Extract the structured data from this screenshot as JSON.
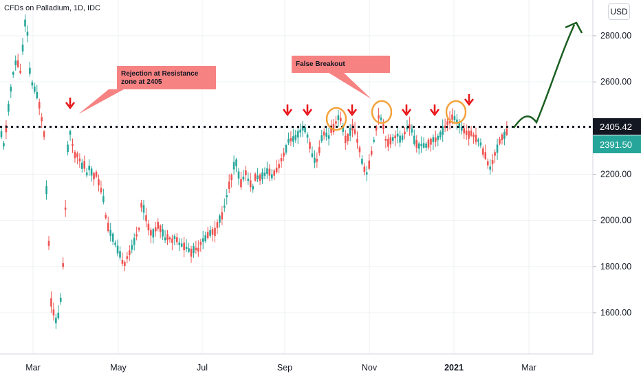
{
  "header": {
    "symbol_title": "CFDs on Palladium, 1D, IDC",
    "currency": "USD"
  },
  "chart_data": {
    "type": "candlestick",
    "title": "CFDs on Palladium, 1D, IDC",
    "y_axis": {
      "ticks": [
        1600,
        1800,
        2000,
        2200,
        2400,
        2600,
        2800
      ],
      "tick_labels": [
        "1600.00",
        "1800.00",
        "2000.00",
        "2200.00",
        "2400.00",
        "2600.00",
        "2800.00"
      ],
      "ylim": [
        1450,
        2920
      ]
    },
    "x_axis": {
      "labels": [
        "Mar",
        "May",
        "Jul",
        "Sep",
        "Nov",
        "2021",
        "Mar"
      ],
      "bold_label": "2021"
    },
    "resistance_level": {
      "value": 2405.42,
      "label": "2405.42"
    },
    "last_price": {
      "value": 2391.5,
      "label": "2391.50",
      "color": "#26a69a"
    },
    "colors": {
      "up": "#26a69a",
      "down": "#ef5350",
      "resistance_tag": "#131722",
      "arrow_down": "#e8161a",
      "circle": "#f4a13a",
      "projection": "#1a5e20",
      "callout_bg": "#f77b7b"
    },
    "annotations": [
      {
        "text_line1": "Rejection at Resistance",
        "text_line2": "zone at 2405"
      },
      {
        "text_line1": "False Breakout",
        "text_line2": ""
      }
    ],
    "keypoints": [
      [
        0,
        2400
      ],
      [
        6,
        2320
      ],
      [
        12,
        2480
      ],
      [
        18,
        2620
      ],
      [
        24,
        2700
      ],
      [
        30,
        2640
      ],
      [
        34,
        2780
      ],
      [
        38,
        2900
      ],
      [
        41,
        2760
      ],
      [
        44,
        2620
      ],
      [
        48,
        2580
      ],
      [
        52,
        2560
      ],
      [
        56,
        2520
      ],
      [
        60,
        2450
      ],
      [
        64,
        2380
      ],
      [
        68,
        2100
      ],
      [
        71,
        1900
      ],
      [
        74,
        1650
      ],
      [
        78,
        1600
      ],
      [
        82,
        1560
      ],
      [
        86,
        1600
      ],
      [
        90,
        1700
      ],
      [
        94,
        1950
      ],
      [
        98,
        2300
      ],
      [
        102,
        2380
      ],
      [
        106,
        2320
      ],
      [
        110,
        2270
      ],
      [
        114,
        2290
      ],
      [
        118,
        2230
      ],
      [
        122,
        2250
      ],
      [
        126,
        2200
      ],
      [
        130,
        2230
      ],
      [
        136,
        2190
      ],
      [
        140,
        2200
      ],
      [
        145,
        2150
      ],
      [
        150,
        2100
      ],
      [
        155,
        1990
      ],
      [
        160,
        1950
      ],
      [
        165,
        1920
      ],
      [
        170,
        1880
      ],
      [
        175,
        1850
      ],
      [
        180,
        1800
      ],
      [
        185,
        1840
      ],
      [
        190,
        1870
      ],
      [
        194,
        1900
      ],
      [
        198,
        1930
      ],
      [
        202,
        1960
      ],
      [
        206,
        2080
      ],
      [
        210,
        2040
      ],
      [
        214,
        1990
      ],
      [
        218,
        1950
      ],
      [
        222,
        1940
      ],
      [
        226,
        1960
      ],
      [
        230,
        1980
      ],
      [
        236,
        1950
      ],
      [
        240,
        1920
      ],
      [
        245,
        1930
      ],
      [
        250,
        1910
      ],
      [
        255,
        1930
      ],
      [
        260,
        1900
      ],
      [
        266,
        1890
      ],
      [
        272,
        1880
      ],
      [
        278,
        1860
      ],
      [
        283,
        1880
      ],
      [
        288,
        1870
      ],
      [
        293,
        1910
      ],
      [
        298,
        1920
      ],
      [
        303,
        1940
      ],
      [
        308,
        1950
      ],
      [
        313,
        1950
      ],
      [
        318,
        2000
      ],
      [
        323,
        2020
      ],
      [
        328,
        2080
      ],
      [
        333,
        2150
      ],
      [
        338,
        2200
      ],
      [
        342,
        2270
      ],
      [
        345,
        2230
      ],
      [
        348,
        2180
      ],
      [
        352,
        2150
      ],
      [
        356,
        2220
      ],
      [
        360,
        2180
      ],
      [
        364,
        2160
      ],
      [
        368,
        2140
      ],
      [
        372,
        2200
      ],
      [
        376,
        2180
      ],
      [
        380,
        2190
      ],
      [
        385,
        2200
      ],
      [
        390,
        2220
      ],
      [
        395,
        2190
      ],
      [
        400,
        2210
      ],
      [
        405,
        2230
      ],
      [
        410,
        2270
      ],
      [
        415,
        2300
      ],
      [
        420,
        2350
      ],
      [
        425,
        2350
      ],
      [
        430,
        2360
      ],
      [
        435,
        2380
      ],
      [
        440,
        2400
      ],
      [
        445,
        2390
      ],
      [
        450,
        2330
      ],
      [
        455,
        2270
      ],
      [
        460,
        2250
      ],
      [
        464,
        2300
      ],
      [
        468,
        2360
      ],
      [
        472,
        2380
      ],
      [
        478,
        2360
      ],
      [
        482,
        2400
      ],
      [
        486,
        2400
      ],
      [
        490,
        2440
      ],
      [
        494,
        2450
      ],
      [
        498,
        2410
      ],
      [
        502,
        2350
      ],
      [
        506,
        2360
      ],
      [
        510,
        2390
      ],
      [
        514,
        2410
      ],
      [
        518,
        2360
      ],
      [
        522,
        2320
      ],
      [
        526,
        2260
      ],
      [
        530,
        2220
      ],
      [
        534,
        2200
      ],
      [
        538,
        2260
      ],
      [
        542,
        2320
      ],
      [
        546,
        2380
      ],
      [
        550,
        2450
      ],
      [
        554,
        2440
      ],
      [
        558,
        2400
      ],
      [
        562,
        2330
      ],
      [
        566,
        2340
      ],
      [
        570,
        2350
      ],
      [
        574,
        2360
      ],
      [
        578,
        2370
      ],
      [
        582,
        2350
      ],
      [
        586,
        2360
      ],
      [
        590,
        2390
      ],
      [
        594,
        2410
      ],
      [
        598,
        2400
      ],
      [
        602,
        2350
      ],
      [
        606,
        2330
      ],
      [
        610,
        2320
      ],
      [
        614,
        2330
      ],
      [
        618,
        2320
      ],
      [
        622,
        2330
      ],
      [
        626,
        2340
      ],
      [
        630,
        2350
      ],
      [
        634,
        2350
      ],
      [
        638,
        2360
      ],
      [
        642,
        2380
      ],
      [
        646,
        2400
      ],
      [
        650,
        2420
      ],
      [
        654,
        2430
      ],
      [
        658,
        2450
      ],
      [
        662,
        2440
      ],
      [
        666,
        2420
      ],
      [
        670,
        2400
      ],
      [
        674,
        2390
      ],
      [
        678,
        2380
      ],
      [
        682,
        2370
      ],
      [
        686,
        2380
      ],
      [
        690,
        2360
      ],
      [
        694,
        2350
      ],
      [
        698,
        2340
      ],
      [
        702,
        2300
      ],
      [
        706,
        2280
      ],
      [
        710,
        2240
      ],
      [
        714,
        2220
      ],
      [
        718,
        2280
      ],
      [
        722,
        2300
      ],
      [
        726,
        2340
      ],
      [
        730,
        2360
      ],
      [
        734,
        2370
      ],
      [
        738,
        2390
      ]
    ]
  }
}
